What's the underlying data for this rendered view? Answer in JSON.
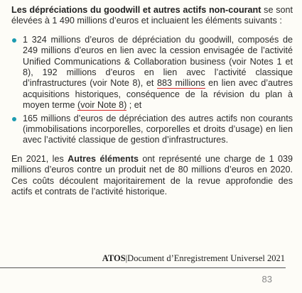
{
  "heading": {
    "bold": "Les dépréciations du goodwill et autres actifs non-courant",
    "text": "se sont élevées à 1 490 millions d’euros et incluaient les éléments suivants :"
  },
  "bullets": [
    {
      "parts": [
        "1 324 millions d’euros de dépréciation du goodwill, composés de 249 millions d’euros en lien avec la cession envisagée de l’activité Unified Communications & Collaboration business (voir Notes 1 et 8), 192 millions d’euros en lien avec l’activité classique d’infrastructures (voir Note 8), et ",
        "883 millions",
        " en lien avec d’autres acquisitions historiques, conséquence de la révision du plan à moyen terme ",
        "(voir Note 8)",
        " ; et"
      ]
    },
    {
      "parts": [
        "165 millions d’euros de dépréciation des autres actifs non courants (immobilisations incorporelles, corporelles et droits d’usage) en lien avec l’activité classique de gestion d’infrastructures."
      ]
    }
  ],
  "paragraph": {
    "before": "En 2021, les ",
    "bold": "Autres éléments",
    "after": " ont représenté une charge de 1 039 millions d’euros contre un produit net de 80 millions d’euros en 2020. Ces coûts découlent majoritairement de la revue approfondie des actifs et contrats de l’activité historique."
  },
  "footer": {
    "brand": "ATOS",
    "separator": "|",
    "title": "Document d’Enregistrement Universel 2021",
    "page": "83"
  }
}
